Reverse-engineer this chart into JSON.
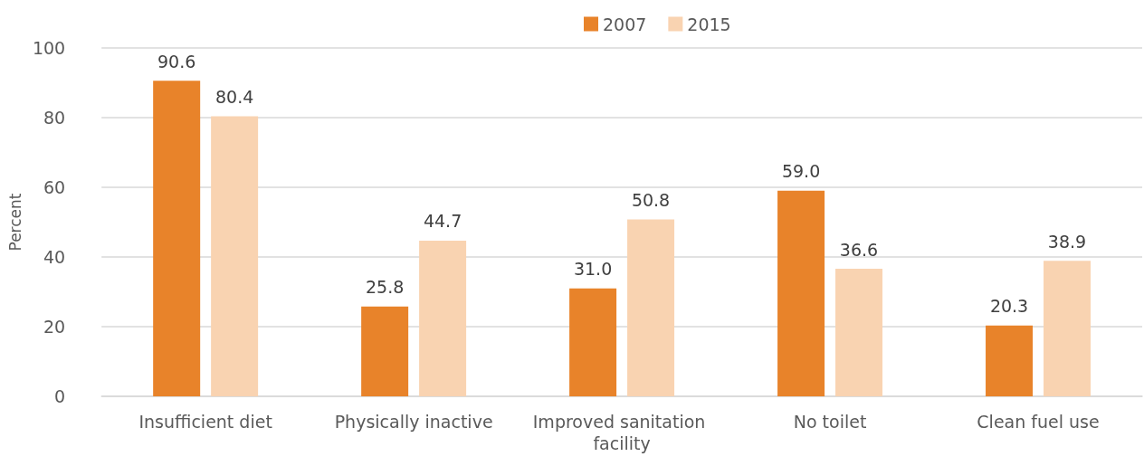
{
  "chart_data": {
    "type": "bar",
    "ylabel": "Percent",
    "categories": [
      "Insufficient diet",
      "Physically inactive",
      "Improved sanitation facility",
      "No toilet",
      "Clean fuel use"
    ],
    "series": [
      {
        "name": "2007",
        "color": "#e8832a",
        "values": [
          90.6,
          25.8,
          31.0,
          59.0,
          20.3
        ],
        "value_labels": [
          "90.6",
          "25.8",
          "31.0",
          "59.0",
          "20.3"
        ]
      },
      {
        "name": "2015",
        "color": "#f9d3b1",
        "values": [
          80.4,
          44.7,
          50.8,
          36.6,
          38.9
        ],
        "value_labels": [
          "80.4",
          "44.7",
          "50.8",
          "36.6",
          "38.9"
        ]
      }
    ],
    "ylim": [
      0,
      100
    ],
    "yticks": [
      0,
      20,
      40,
      60,
      80,
      100
    ],
    "grid": "y",
    "legend": "top"
  }
}
